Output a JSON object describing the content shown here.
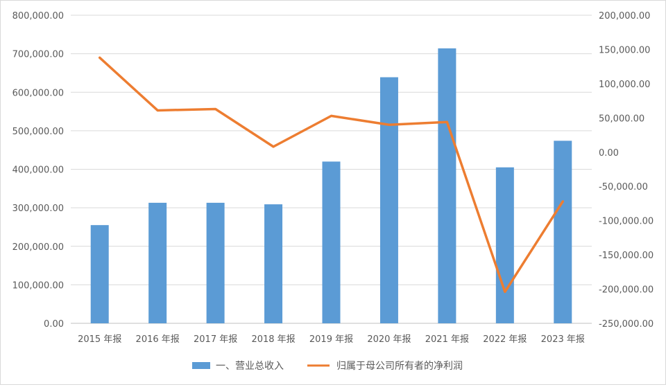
{
  "chart_data": {
    "type": "bar+line",
    "categories": [
      "2015 年报",
      "2016 年报",
      "2017 年报",
      "2018 年报",
      "2019 年报",
      "2020 年报",
      "2021 年报",
      "2022 年报",
      "2023 年报"
    ],
    "series": [
      {
        "name": "一、营业总收入",
        "type": "bar",
        "axis": "left",
        "color": "#5b9bd5",
        "values": [
          255000,
          313000,
          313000,
          309000,
          420000,
          639000,
          714000,
          405000,
          474000
        ]
      },
      {
        "name": "归属于母公司所有者的净利润",
        "type": "line",
        "axis": "right",
        "color": "#ed7d31",
        "values": [
          138000,
          61000,
          63000,
          8000,
          53000,
          40000,
          44000,
          -204000,
          -72000
        ]
      }
    ],
    "left_axis": {
      "min": 0,
      "max": 800000,
      "step": 100000,
      "tick_labels": [
        "0.00",
        "100,000.00",
        "200,000.00",
        "300,000.00",
        "400,000.00",
        "500,000.00",
        "600,000.00",
        "700,000.00",
        "800,000.00"
      ]
    },
    "right_axis": {
      "min": -250000,
      "max": 200000,
      "step": 50000,
      "tick_labels": [
        "-250,000.00",
        "-200,000.00",
        "-150,000.00",
        "-100,000.00",
        "-50,000.00",
        "0.00",
        "50,000.00",
        "100,000.00",
        "150,000.00",
        "200,000.00"
      ]
    },
    "grid": true,
    "legend_position": "bottom"
  }
}
